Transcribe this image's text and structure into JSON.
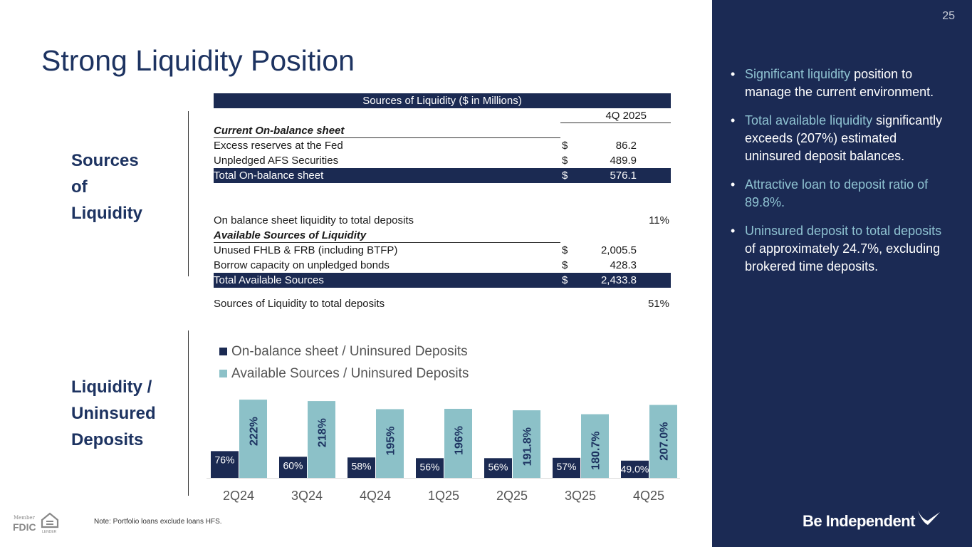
{
  "page_number": "25",
  "title": "Strong Liquidity Position",
  "section1": [
    "Sources",
    "of",
    "Liquidity"
  ],
  "section2": [
    "Liquidity /",
    "Uninsured",
    "Deposits"
  ],
  "table": {
    "header": "Sources of Liquidity ($ in Millions)",
    "period": "4Q 2025",
    "current_heading": "Current On-balance sheet",
    "rows1": [
      {
        "label": "Excess reserves at the Fed",
        "cur": "$",
        "val": "86.2"
      },
      {
        "label": "Unpledged AFS Securities",
        "cur": "$",
        "val": "489.9"
      }
    ],
    "total1": {
      "label": "Total On-balance sheet",
      "cur": "$",
      "val": "576.1"
    },
    "ratio1": {
      "label": "On balance sheet liquidity to total deposits",
      "val": "11%"
    },
    "avail_heading": "Available Sources of Liquidity",
    "rows2": [
      {
        "label": "Unused FHLB & FRB (including BTFP)",
        "cur": "$",
        "val": "2,005.5"
      },
      {
        "label": "Borrow capacity on unpledged bonds",
        "cur": "$",
        "val": "428.3"
      }
    ],
    "total2": {
      "label": "Total Available Sources",
      "cur": "$",
      "val": "2,433.8"
    },
    "ratio2": {
      "label": "Sources of Liquidity to total deposits",
      "val": "51%"
    }
  },
  "chart_data": {
    "type": "bar",
    "categories": [
      "2Q24",
      "3Q24",
      "4Q24",
      "1Q25",
      "2Q25",
      "3Q25",
      "4Q25"
    ],
    "series": [
      {
        "name": "On-balance sheet / Uninsured Deposits",
        "color": "#1b2a52",
        "values": [
          76,
          60,
          58,
          56,
          56,
          57,
          49.0
        ],
        "labels": [
          "76%",
          "60%",
          "58%",
          "56%",
          "56%",
          "57%",
          "49.0%"
        ]
      },
      {
        "name": "Available Sources / Uninsured Deposits",
        "color": "#8cc1c8",
        "values": [
          222,
          218,
          195,
          196,
          191.8,
          180.7,
          207.0
        ],
        "labels": [
          "222%",
          "218%",
          "195%",
          "196%",
          "191.8%",
          "180.7%",
          "207.0%"
        ]
      }
    ],
    "legend": "top-left"
  },
  "bullets": [
    {
      "hl": "Significant liquidity",
      "rest": " position to manage the current environment."
    },
    {
      "hl": "Total available liquidity",
      "rest": " significantly exceeds (207%) estimated uninsured deposit balances."
    },
    {
      "hl": "Attractive loan to deposit ratio of 89.8%.",
      "rest": ""
    },
    {
      "hl": "Uninsured deposit to total deposits",
      "rest": " of approximately 24.7%, excluding brokered time deposits."
    }
  ],
  "note": "Note: Portfolio loans exclude loans HFS.",
  "fdic": {
    "member": "Member",
    "fdic": "FDIC",
    "lender": "EQUAL HOUSING LENDER"
  },
  "brand": "Be Independent"
}
